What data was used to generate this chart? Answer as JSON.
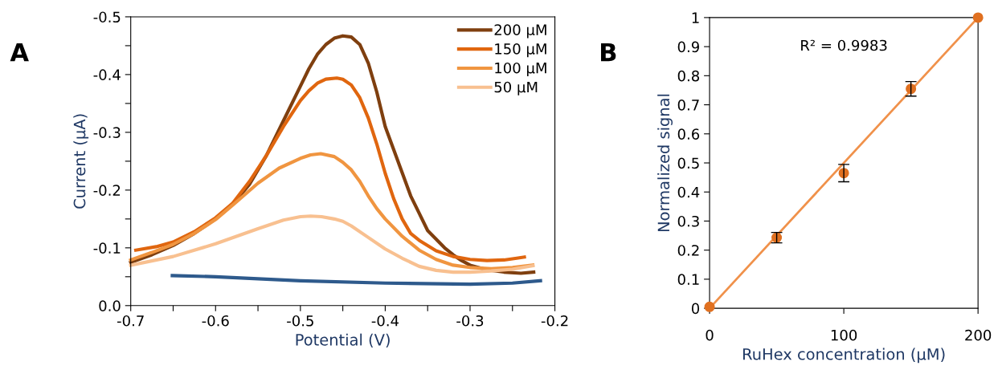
{
  "chart_data": [
    {
      "type": "line",
      "annotations": [
        "A"
      ],
      "xlabel": "Potential (V)",
      "ylabel": "Current (µA)",
      "legend": "top right",
      "grid": false,
      "marker": "none",
      "line_style": "solid",
      "xlim": [
        -0.7,
        -0.2
      ],
      "xticks": [
        -0.7,
        {
          "value": -0.65,
          "label": null
        },
        -0.6,
        {
          "value": -0.55,
          "label": null
        },
        -0.5,
        {
          "value": -0.45,
          "label": null
        },
        -0.4,
        {
          "value": -0.35,
          "label": null
        },
        -0.3,
        {
          "value": -0.25,
          "label": null
        },
        -0.2
      ],
      "ylim": [
        0,
        -0.5
      ],
      "yticks": [
        {
          "value": 0,
          "label": "0.0"
        },
        {
          "value": -0.05,
          "label": null
        },
        -0.1,
        {
          "value": -0.15,
          "label": null
        },
        -0.2,
        {
          "value": -0.25,
          "label": null
        },
        -0.3,
        {
          "value": -0.35,
          "label": null
        },
        -0.4,
        {
          "value": -0.45,
          "label": null
        },
        -0.5
      ],
      "series": [
        {
          "name": "200 µM",
          "color": "#7f3f0f",
          "x": [
            -0.7,
            -0.675,
            -0.65,
            -0.625,
            -0.6,
            -0.58,
            -0.56,
            -0.54,
            -0.52,
            -0.5,
            -0.49,
            -0.48,
            -0.47,
            -0.46,
            -0.45,
            -0.44,
            -0.43,
            -0.42,
            -0.41,
            -0.4,
            -0.39,
            -0.38,
            -0.37,
            -0.36,
            -0.35,
            -0.34,
            -0.33,
            -0.32,
            -0.31,
            -0.3,
            -0.28,
            -0.26,
            -0.24,
            -0.225
          ],
          "values": [
            -0.075,
            -0.088,
            -0.104,
            -0.125,
            -0.15,
            -0.175,
            -0.21,
            -0.26,
            -0.32,
            -0.38,
            -0.41,
            -0.435,
            -0.452,
            -0.463,
            -0.467,
            -0.465,
            -0.452,
            -0.42,
            -0.37,
            -0.31,
            -0.27,
            -0.23,
            -0.19,
            -0.16,
            -0.13,
            -0.115,
            -0.1,
            -0.088,
            -0.078,
            -0.07,
            -0.062,
            -0.058,
            -0.056,
            -0.058
          ]
        },
        {
          "name": "150 µM",
          "color": "#e0660f",
          "x": [
            -0.694,
            -0.67,
            -0.65,
            -0.625,
            -0.6,
            -0.58,
            -0.56,
            -0.54,
            -0.52,
            -0.5,
            -0.49,
            -0.48,
            -0.47,
            -0.457,
            -0.45,
            -0.44,
            -0.43,
            -0.42,
            -0.41,
            -0.4,
            -0.39,
            -0.38,
            -0.37,
            -0.36,
            -0.35,
            -0.34,
            -0.32,
            -0.3,
            -0.28,
            -0.26,
            -0.245,
            -0.236
          ],
          "values": [
            -0.096,
            -0.102,
            -0.11,
            -0.128,
            -0.152,
            -0.177,
            -0.215,
            -0.26,
            -0.31,
            -0.355,
            -0.372,
            -0.385,
            -0.392,
            -0.394,
            -0.392,
            -0.382,
            -0.36,
            -0.325,
            -0.28,
            -0.229,
            -0.185,
            -0.15,
            -0.125,
            -0.113,
            -0.104,
            -0.095,
            -0.085,
            -0.08,
            -0.078,
            -0.079,
            -0.082,
            -0.084
          ]
        },
        {
          "name": "100 µM",
          "color": "#f09540",
          "x": [
            -0.7,
            -0.675,
            -0.65,
            -0.625,
            -0.6,
            -0.575,
            -0.55,
            -0.525,
            -0.5,
            -0.488,
            -0.476,
            -0.46,
            -0.45,
            -0.44,
            -0.43,
            -0.42,
            -0.41,
            -0.4,
            -0.38,
            -0.36,
            -0.34,
            -0.32,
            -0.3,
            -0.275,
            -0.25,
            -0.226
          ],
          "values": [
            -0.079,
            -0.092,
            -0.106,
            -0.125,
            -0.149,
            -0.18,
            -0.212,
            -0.238,
            -0.255,
            -0.261,
            -0.263,
            -0.258,
            -0.248,
            -0.235,
            -0.215,
            -0.19,
            -0.168,
            -0.15,
            -0.12,
            -0.096,
            -0.08,
            -0.07,
            -0.066,
            -0.064,
            -0.066,
            -0.07
          ]
        },
        {
          "name": "50 µM",
          "color": "#f8c090",
          "x": [
            -0.7,
            -0.65,
            -0.6,
            -0.55,
            -0.52,
            -0.5,
            -0.488,
            -0.475,
            -0.46,
            -0.45,
            -0.44,
            -0.42,
            -0.4,
            -0.38,
            -0.36,
            -0.34,
            -0.32,
            -0.3,
            -0.275,
            -0.25,
            -0.226
          ],
          "values": [
            -0.07,
            -0.085,
            -0.107,
            -0.133,
            -0.148,
            -0.154,
            -0.155,
            -0.154,
            -0.15,
            -0.146,
            -0.138,
            -0.118,
            -0.098,
            -0.082,
            -0.068,
            -0.061,
            -0.058,
            -0.058,
            -0.06,
            -0.063,
            -0.069
          ]
        },
        {
          "color": "#2e5a8c",
          "x": [
            -0.651,
            -0.6,
            -0.5,
            -0.4,
            -0.3,
            -0.25,
            -0.217
          ],
          "values": [
            -0.052,
            -0.05,
            -0.043,
            -0.039,
            -0.037,
            -0.039,
            -0.043
          ]
        }
      ]
    },
    {
      "type": "scatter",
      "annotations": [
        "B",
        {
          "text": "R² = 0.9983"
        }
      ],
      "xlabel": "RuHex concentration (µM)",
      "ylabel": "Normalized signal",
      "legend": false,
      "grid": false,
      "xlim": [
        0,
        200
      ],
      "xticks": [
        0,
        100,
        200
      ],
      "ylim": [
        0,
        1
      ],
      "yticks": [
        0,
        0.1,
        0.2,
        0.3,
        0.4,
        0.5,
        0.6,
        0.7,
        0.8,
        0.9,
        1
      ],
      "series": [
        {
          "type": "line",
          "color": "#f0914a",
          "x": [
            0,
            200
          ],
          "values": [
            0.0,
            1.0
          ]
        },
        {
          "marker": "circle",
          "color": "#e07020",
          "x": [
            0,
            50,
            100,
            150,
            200
          ],
          "values": [
            0.005,
            0.243,
            0.465,
            0.755,
            1.0
          ],
          "errors": [
            null,
            0.018,
            0.03,
            0.025,
            null
          ]
        }
      ]
    }
  ]
}
